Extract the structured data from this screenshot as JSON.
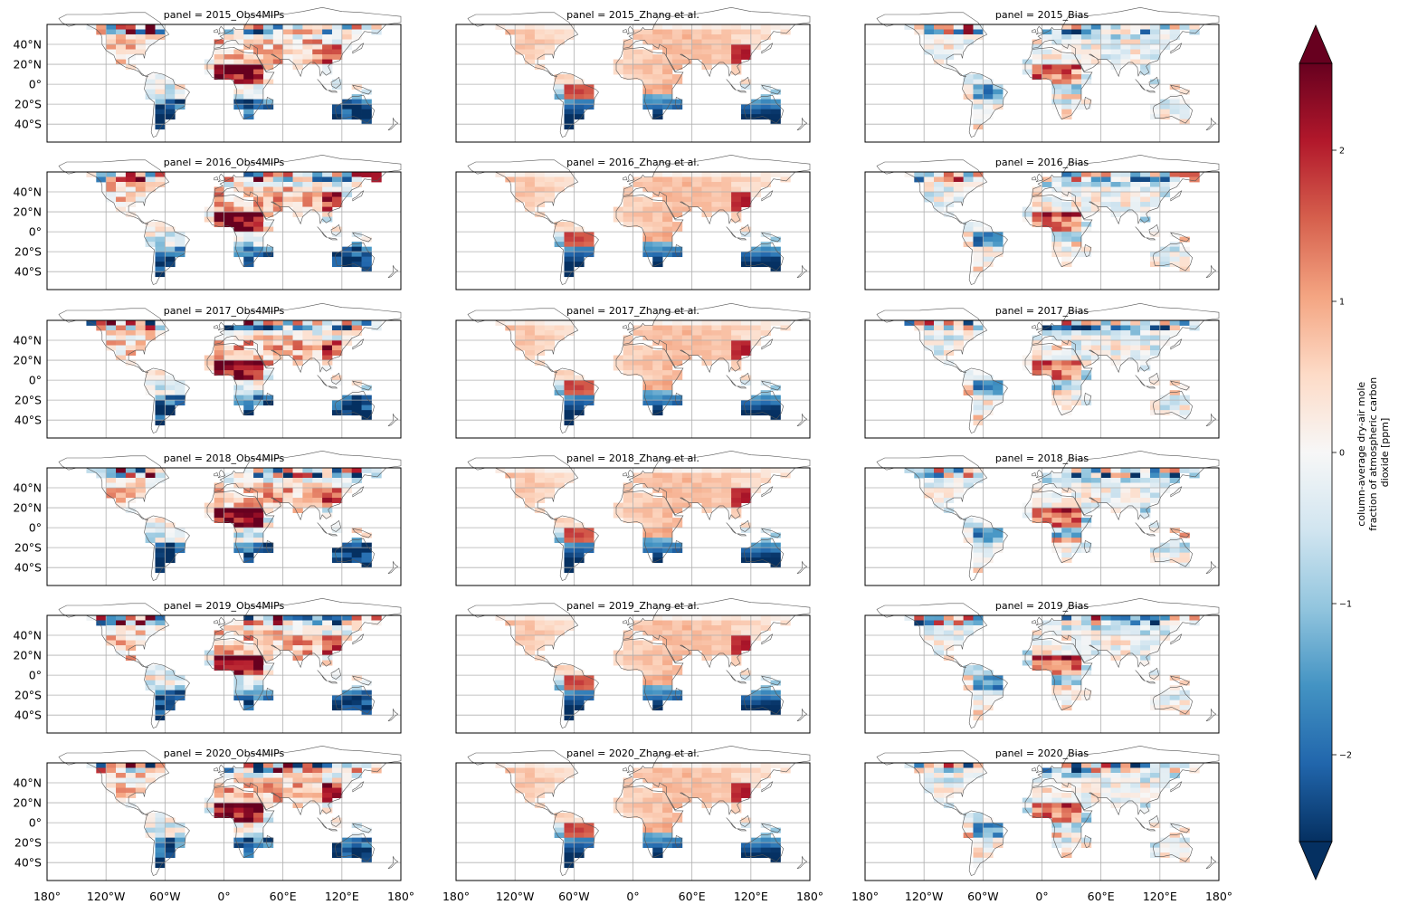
{
  "figure": {
    "panels": [
      "panel = 2015_Obs4MIPs",
      "panel = 2015_Zhang et al.",
      "panel = 2015_Bias",
      "panel = 2016_Obs4MIPs",
      "panel = 2016_Zhang et al.",
      "panel = 2016_Bias",
      "panel = 2017_Obs4MIPs",
      "panel = 2017_Zhang et al.",
      "panel = 2017_Bias",
      "panel = 2018_Obs4MIPs",
      "panel = 2018_Zhang et al.",
      "panel = 2018_Bias",
      "panel = 2019_Obs4MIPs",
      "panel = 2019_Zhang et al.",
      "panel = 2019_Bias",
      "panel = 2020_Obs4MIPs",
      "panel = 2020_Zhang et al.",
      "panel = 2020_Bias"
    ],
    "lat_ticks": [
      "40°N",
      "20°N",
      "0°",
      "20°S",
      "40°S"
    ],
    "lon_ticks": [
      "180°",
      "120°W",
      "60°W",
      "0°",
      "60°E",
      "120°E",
      "180°"
    ],
    "colorbar": {
      "label_lines": [
        "column-average dry-air mole",
        "fraction of atmospheric carbon",
        "dioxide [ppm]"
      ],
      "ticks": [
        "2",
        "1",
        "0",
        "−1",
        "−2"
      ],
      "colormap": "RdBu_r",
      "extend": "both",
      "range": [
        -2.5,
        2.5
      ]
    },
    "colors": {
      "coast": "#555555",
      "grid": "#b0b0b0",
      "ocean": "#ffffff"
    }
  }
}
